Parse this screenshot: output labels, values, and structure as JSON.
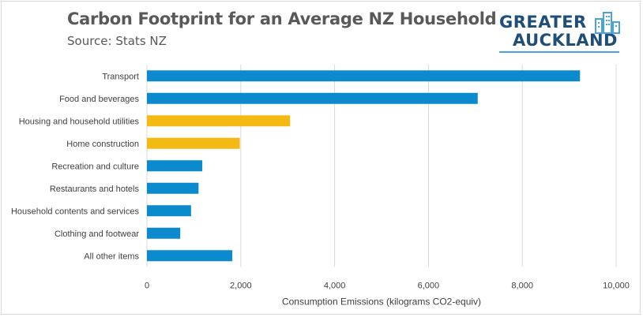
{
  "chart_data": {
    "type": "bar",
    "orientation": "horizontal",
    "title": "Carbon Footprint for an Average NZ Household",
    "subtitle": "Source: Stats NZ",
    "xlabel": "Consumption Emissions (kilograms CO2-equiv)",
    "ylabel": "",
    "xlim": [
      0,
      10000
    ],
    "xticks": [
      0,
      2000,
      4000,
      6000,
      8000,
      10000
    ],
    "xtick_labels": [
      "0",
      "2,000",
      "4,000",
      "6,000",
      "8,000",
      "10,000"
    ],
    "grid": "vertical",
    "legend": "none",
    "categories": [
      "Transport",
      "Food and beverages",
      "Housing and household utilities",
      "Home construction",
      "Recreation and culture",
      "Restaurants and hotels",
      "Household contents and services",
      "Clothing and footwear",
      "All other items"
    ],
    "values": [
      9230,
      7050,
      3050,
      1980,
      1180,
      1100,
      940,
      710,
      1820
    ],
    "colors": [
      "#0B8ACD",
      "#0B8ACD",
      "#F5B914",
      "#F5B914",
      "#0B8ACD",
      "#0B8ACD",
      "#0B8ACD",
      "#0B8ACD",
      "#0B8ACD"
    ]
  },
  "logo": {
    "line1": "GREATER",
    "line2": "AUCKLAND",
    "color": "#1F4E79",
    "icon": "buildings-icon"
  }
}
